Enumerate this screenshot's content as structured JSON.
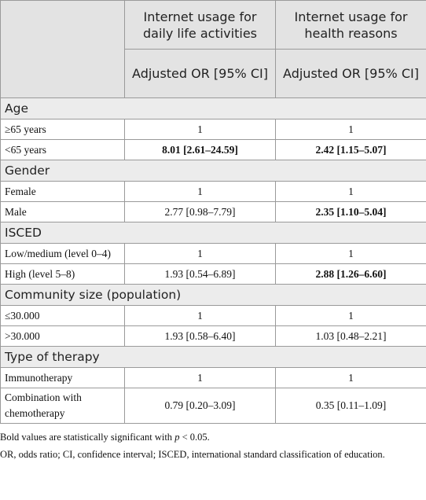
{
  "table": {
    "header": {
      "columns": [
        "Internet usage for daily life activities",
        "Internet usage for health reasons"
      ],
      "subheaders": [
        "Adjusted OR [95% CI]",
        "Adjusted OR [95% CI]"
      ]
    },
    "sections": [
      {
        "title": "Age",
        "rows": [
          {
            "label": "≥65 years",
            "values": [
              "1",
              "1"
            ],
            "bold": [
              false,
              false
            ]
          },
          {
            "label": "<65 years",
            "values": [
              "8.01 [2.61–24.59]",
              "2.42 [1.15–5.07]"
            ],
            "bold": [
              true,
              true
            ]
          }
        ]
      },
      {
        "title": "Gender",
        "rows": [
          {
            "label": "Female",
            "values": [
              "1",
              "1"
            ],
            "bold": [
              false,
              false
            ]
          },
          {
            "label": "Male",
            "values": [
              "2.77 [0.98–7.79]",
              "2.35 [1.10–5.04]"
            ],
            "bold": [
              false,
              true
            ]
          }
        ]
      },
      {
        "title": "ISCED",
        "rows": [
          {
            "label": "Low/medium (level 0–4)",
            "values": [
              "1",
              "1"
            ],
            "bold": [
              false,
              false
            ]
          },
          {
            "label": "High (level 5–8)",
            "values": [
              "1.93 [0.54–6.89]",
              "2.88 [1.26–6.60]"
            ],
            "bold": [
              false,
              true
            ]
          }
        ]
      },
      {
        "title": "Community size (population)",
        "rows": [
          {
            "label": "≤30.000",
            "values": [
              "1",
              "1"
            ],
            "bold": [
              false,
              false
            ]
          },
          {
            "label": ">30.000",
            "values": [
              "1.93 [0.58–6.40]",
              "1.03 [0.48–2.21]"
            ],
            "bold": [
              false,
              false
            ]
          }
        ]
      },
      {
        "title": "Type of therapy",
        "rows": [
          {
            "label": "Immunotherapy",
            "values": [
              "1",
              "1"
            ],
            "bold": [
              false,
              false
            ]
          },
          {
            "label": "Combination with chemotherapy",
            "values": [
              "0.79 [0.20–3.09]",
              "0.35 [0.11–1.09]"
            ],
            "bold": [
              false,
              false
            ]
          }
        ]
      }
    ]
  },
  "notes": {
    "significance": {
      "before": "Bold values are statistically significant with ",
      "italic": "p",
      "after": " < 0.05."
    },
    "abbreviations": "OR, odds ratio; CI, confidence interval; ISCED, international standard classification of education."
  }
}
